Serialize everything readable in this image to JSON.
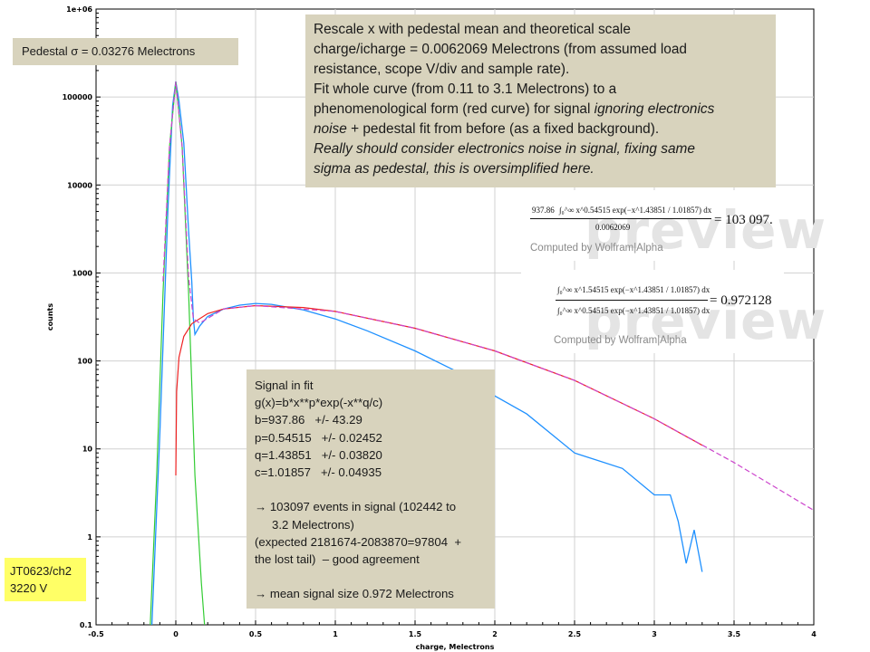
{
  "chart_data": {
    "type": "line",
    "xlabel": "charge, Melectrons",
    "ylabel": "counts",
    "xlim": [
      -0.5,
      4
    ],
    "ylim": [
      0.1,
      1000000
    ],
    "yscale": "log",
    "grid": true,
    "x_ticks": [
      "-0.5",
      "0",
      "0.5",
      "1",
      "1.5",
      "2",
      "2.5",
      "3",
      "3.5",
      "4"
    ],
    "y_ticks": [
      "0.1",
      "1",
      "10",
      "100",
      "1000",
      "10000",
      "100000",
      "1e+06"
    ],
    "series": [
      {
        "color": "#1e90ff",
        "x": [
          -0.15,
          -0.1,
          -0.05,
          -0.02,
          0,
          0.02,
          0.05,
          0.08,
          0.1,
          0.11,
          0.12,
          0.15,
          0.2,
          0.3,
          0.4,
          0.5,
          0.6,
          0.8,
          1.0,
          1.2,
          1.5,
          1.8,
          2.0,
          2.2,
          2.5,
          2.8,
          3.0,
          3.1,
          3.15,
          3.2,
          3.25,
          3.3
        ],
        "y": [
          0.1,
          15,
          5000,
          80000,
          150000,
          90000,
          30000,
          3000,
          800,
          300,
          200,
          250,
          320,
          390,
          430,
          450,
          440,
          380,
          300,
          220,
          130,
          70,
          40,
          25,
          9,
          6,
          3,
          3,
          1.5,
          0.5,
          1.2,
          0.4
        ]
      },
      {
        "color": "#33cc33",
        "x": [
          -0.16,
          -0.12,
          -0.08,
          -0.04,
          0,
          0.04,
          0.08,
          0.12,
          0.16,
          0.18
        ],
        "y": [
          0.1,
          5,
          600,
          27000,
          150000,
          27000,
          600,
          5,
          0.3,
          0.1
        ]
      },
      {
        "color": "#ee2222",
        "x": [
          0,
          0.005,
          0.02,
          0.05,
          0.1,
          0.2,
          0.3,
          0.5,
          0.8,
          1.0,
          1.5,
          2.0,
          2.5,
          3.0,
          3.3
        ],
        "y": [
          5,
          45,
          110,
          190,
          265,
          345,
          390,
          425,
          405,
          365,
          235,
          130,
          60,
          22,
          11
        ]
      },
      {
        "color": "#cc44cc",
        "x": [
          -0.08,
          -0.04,
          0,
          0.04,
          0.08,
          0.11,
          0.15,
          0.3,
          0.5,
          1.0,
          1.5,
          2.0,
          2.5,
          3.0,
          3.5,
          4.0
        ],
        "y": [
          800,
          27000,
          150000,
          27000,
          900,
          300,
          270,
          390,
          425,
          365,
          235,
          130,
          60,
          22,
          7,
          2
        ]
      }
    ]
  },
  "annotations": {
    "pedestal": "Pedestal σ =  0.03276 Melectrons",
    "description": {
      "line1": "Rescale x with pedestal mean and theoretical scale",
      "line2": "charge/icharge = 0.0062069 Melectrons (from assumed load",
      "line3": "resistance, scope V/div and sample rate).",
      "line4": "Fit whole curve (from 0.11 to 3.1 Melectrons) to a",
      "line5a": "phenomenological form (red curve) for signal ",
      "line5b": "ignoring electronics",
      "line6a": "noise",
      "line6b": " + pedestal fit from before (as a fixed background).",
      "line7": "Really should consider electronics noise in signal, fixing same",
      "line8": "sigma as pedestal, this is oversimplified here."
    },
    "signal_fit": {
      "l1": "Signal in fit",
      "l2": "g(x)=b*x**p*exp(-x**q/c)",
      "l3": "b=937.86   +/- 43.29",
      "l4": "p=0.54515   +/- 0.02452",
      "l5": "q=1.43851   +/- 0.03820",
      "l6": "c=1.01857   +/- 0.04935",
      "l7": "→ 103097 events in signal (102442 to",
      "l8": "3.2 Melectrons)",
      "l9": "(expected 2181674-2083870=97804  +",
      "l10": "the lost tail)  – good agreement",
      "l11": "→ mean signal size 0.972 Melectrons"
    },
    "run_label": {
      "l1": "JT0623/ch2",
      "l2": "3220 V"
    }
  },
  "wolfram": {
    "watermark": "preview",
    "footer": "Computed by Wolfram|Alpha",
    "eq1": {
      "coef": "937.86",
      "integrand": "∫₀^∞ x^0.54515 exp(−x^1.43851 / 1.01857) dx",
      "denominator": "0.0062069",
      "result": "= 103 097."
    },
    "eq2": {
      "numerator": "∫₀^∞ x^1.54515 exp(−x^1.43851 / 1.01857) dx",
      "denominator": "∫₀^∞ x^0.54515 exp(−x^1.43851 / 1.01857) dx",
      "result": "= 0.972128"
    }
  },
  "colors": {
    "data": "#1e90ff",
    "pedestal_fit": "#33cc33",
    "signal_fit": "#ee2222",
    "total_fit": "#cc44cc",
    "note_bg": "#d8d3bd",
    "label_bg": "#ffff66"
  }
}
